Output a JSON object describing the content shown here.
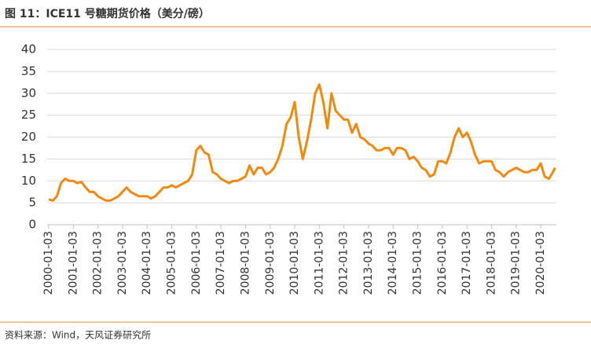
{
  "header": {
    "title": "图 11：ICE11 号糖期货价格（美分/磅）"
  },
  "chart_data": {
    "type": "line",
    "x": [
      "2000-01-03",
      "2000-03-03",
      "2000-05-03",
      "2000-07-03",
      "2000-09-03",
      "2000-11-03",
      "2001-01-03",
      "2001-03-03",
      "2001-05-03",
      "2001-07-03",
      "2001-09-03",
      "2001-11-03",
      "2002-01-03",
      "2002-03-03",
      "2002-05-03",
      "2002-07-03",
      "2002-09-03",
      "2002-11-03",
      "2003-01-03",
      "2003-03-03",
      "2003-05-03",
      "2003-07-03",
      "2003-09-03",
      "2003-11-03",
      "2004-01-03",
      "2004-03-03",
      "2004-05-03",
      "2004-07-03",
      "2004-09-03",
      "2004-11-03",
      "2005-01-03",
      "2005-03-03",
      "2005-05-03",
      "2005-07-03",
      "2005-09-03",
      "2005-11-03",
      "2006-01-03",
      "2006-03-03",
      "2006-05-03",
      "2006-07-03",
      "2006-09-03",
      "2006-11-03",
      "2007-01-03",
      "2007-03-03",
      "2007-05-03",
      "2007-07-03",
      "2007-09-03",
      "2007-11-03",
      "2008-01-03",
      "2008-03-03",
      "2008-05-03",
      "2008-07-03",
      "2008-09-03",
      "2008-11-03",
      "2009-01-03",
      "2009-03-03",
      "2009-05-03",
      "2009-07-03",
      "2009-09-03",
      "2009-11-03",
      "2010-01-03",
      "2010-03-03",
      "2010-05-03",
      "2010-07-03",
      "2010-09-03",
      "2010-11-03",
      "2011-01-03",
      "2011-03-03",
      "2011-05-03",
      "2011-07-03",
      "2011-09-03",
      "2011-11-03",
      "2012-01-03",
      "2012-03-03",
      "2012-05-03",
      "2012-07-03",
      "2012-09-03",
      "2012-11-03",
      "2013-01-03",
      "2013-03-03",
      "2013-05-03",
      "2013-07-03",
      "2013-09-03",
      "2013-11-03",
      "2014-01-03",
      "2014-03-03",
      "2014-05-03",
      "2014-07-03",
      "2014-09-03",
      "2014-11-03",
      "2015-01-03",
      "2015-03-03",
      "2015-05-03",
      "2015-07-03",
      "2015-09-03",
      "2015-11-03",
      "2016-01-03",
      "2016-03-03",
      "2016-05-03",
      "2016-07-03",
      "2016-09-03",
      "2016-11-03",
      "2017-01-03",
      "2017-03-03",
      "2017-05-03",
      "2017-07-03",
      "2017-09-03",
      "2017-11-03",
      "2018-01-03",
      "2018-03-03",
      "2018-05-03",
      "2018-07-03",
      "2018-09-03",
      "2018-11-03",
      "2019-01-03",
      "2019-03-03",
      "2019-05-03",
      "2019-07-03",
      "2019-09-03",
      "2019-11-03",
      "2020-01-03",
      "2020-03-03",
      "2020-05-03",
      "2020-07-03",
      "2020-08-03"
    ],
    "values": [
      5.8,
      5.5,
      6.5,
      9.5,
      10.5,
      10,
      10,
      9.5,
      9.8,
      8.5,
      7.5,
      7.5,
      6.5,
      6,
      5.5,
      5.5,
      6,
      6.5,
      7.5,
      8.5,
      7.5,
      7,
      6.5,
      6.5,
      6.5,
      6,
      6.5,
      7.5,
      8.5,
      8.5,
      9,
      8.5,
      9,
      9.5,
      10,
      11.5,
      17,
      18,
      16.5,
      16,
      12,
      11.5,
      10.5,
      10,
      9.5,
      10,
      10,
      10.5,
      11,
      13.5,
      11.5,
      13,
      13,
      11.5,
      12,
      13,
      15,
      18,
      23,
      24.5,
      28,
      20,
      15,
      19,
      24,
      30,
      32,
      28,
      22,
      30,
      26,
      25,
      24,
      24,
      21,
      23,
      20,
      19.5,
      18.5,
      18,
      17,
      17,
      17.5,
      17.5,
      16,
      17.5,
      17.5,
      17,
      15,
      15.5,
      14.5,
      13,
      12.5,
      11,
      11.5,
      14.5,
      14.5,
      14,
      16.5,
      20,
      22,
      20,
      21,
      19,
      16,
      14,
      14.5,
      14.5,
      14.5,
      12.5,
      12,
      11,
      12,
      12.5,
      13,
      12.5,
      12,
      12,
      12.5,
      12.5,
      14,
      11,
      10.5,
      12,
      13
    ],
    "color": "#f0890f",
    "ylim": [
      0,
      40
    ],
    "yticks": [
      0,
      5,
      10,
      15,
      20,
      25,
      30,
      35,
      40
    ],
    "grid": true,
    "xticks": [
      "2000-01-03",
      "2001-01-03",
      "2002-01-03",
      "2003-01-03",
      "2004-01-03",
      "2005-01-03",
      "2006-01-03",
      "2007-01-03",
      "2008-01-03",
      "2009-01-03",
      "2010-01-03",
      "2011-01-03",
      "2012-01-03",
      "2013-01-03",
      "2014-01-03",
      "2015-01-03",
      "2016-01-03",
      "2017-01-03",
      "2018-01-03",
      "2019-01-03",
      "2020-01-03"
    ]
  },
  "footer": {
    "source": "资料来源：Wind，天风证券研究所"
  }
}
